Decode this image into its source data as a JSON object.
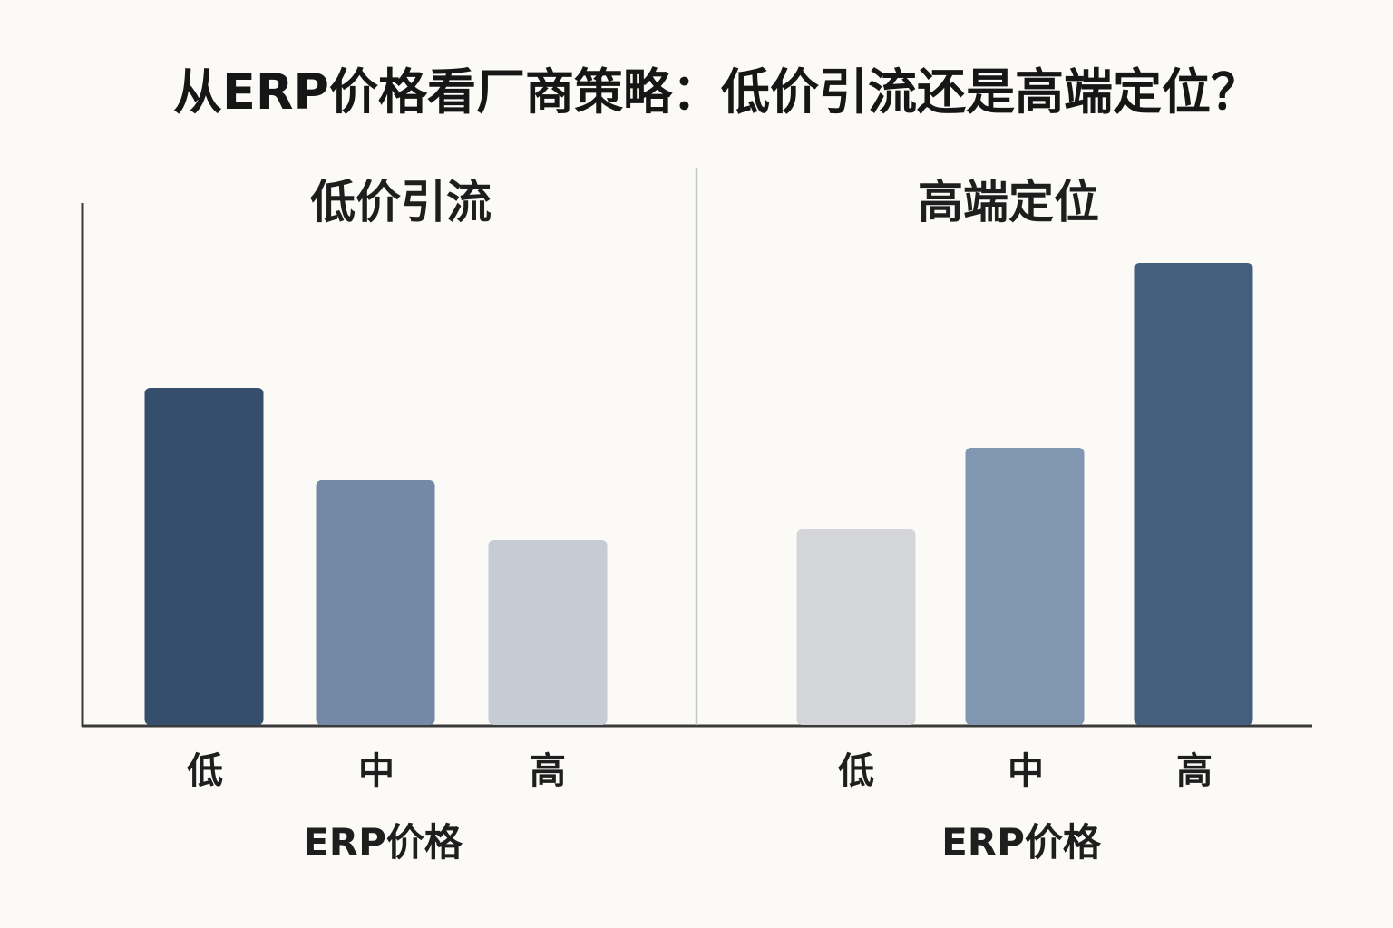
{
  "title": "从ERP价格看厂商策略：低价引流还是高端定位？",
  "chart_data": [
    {
      "type": "bar",
      "title": "低价引流",
      "categories": [
        "低",
        "中",
        "高"
      ],
      "values": [
        62,
        45,
        34
      ],
      "xlabel": "ERP价格",
      "ylabel": "",
      "ylim": [
        0,
        100
      ],
      "colors": [
        "#344e6b",
        "#7489a6",
        "#c6ccd3"
      ],
      "grid": false
    },
    {
      "type": "bar",
      "title": "高端定位",
      "categories": [
        "低",
        "中",
        "高"
      ],
      "values": [
        36,
        51,
        85
      ],
      "xlabel": "ERP价格",
      "ylabel": "",
      "ylim": [
        0,
        100
      ],
      "colors": [
        "#d3d5d8",
        "#8196b0",
        "#435f7d"
      ],
      "grid": false
    }
  ]
}
